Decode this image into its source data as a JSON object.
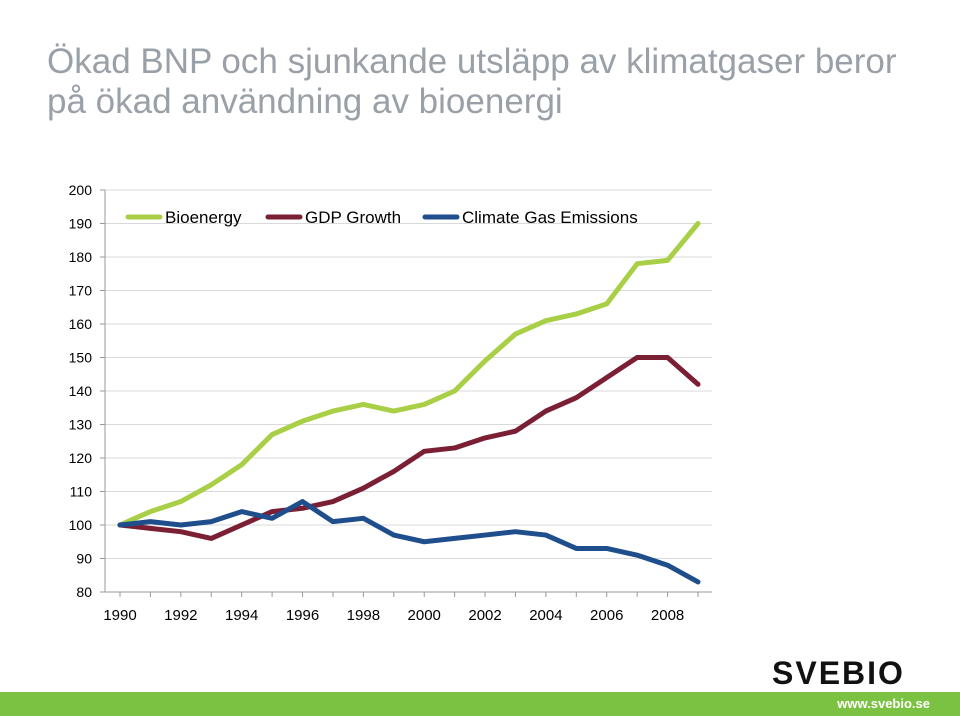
{
  "title_lines": [
    "Ökad BNP och sjunkande utsläpp av klimatgaser beror",
    "på ökad användning av bioenergi"
  ],
  "brand": {
    "logo_text": "SVEBIO",
    "url": "www.svebio.se",
    "accent_color": "#7cc242"
  },
  "chart_data": {
    "type": "line",
    "title": "",
    "xlabel": "",
    "ylabel": "",
    "x": [
      1990,
      1991,
      1992,
      1993,
      1994,
      1995,
      1996,
      1997,
      1998,
      1999,
      2000,
      2001,
      2002,
      2003,
      2004,
      2005,
      2006,
      2007,
      2008,
      2009
    ],
    "x_ticks": [
      "1990",
      "1992",
      "1994",
      "1996",
      "1998",
      "2000",
      "2002",
      "2004",
      "2006",
      "2008"
    ],
    "ylim": [
      80,
      200
    ],
    "y_ticks": [
      "80",
      "90",
      "100",
      "110",
      "120",
      "130",
      "140",
      "150",
      "160",
      "170",
      "180",
      "190",
      "200"
    ],
    "grid": true,
    "legend_position": "top",
    "series": [
      {
        "name": "Bioenergy",
        "color": "#a8cf45",
        "values": [
          100,
          104,
          107,
          112,
          118,
          127,
          131,
          134,
          136,
          134,
          136,
          140,
          149,
          157,
          161,
          163,
          166,
          178,
          179,
          190
        ]
      },
      {
        "name": "GDP Growth",
        "color": "#7b1f34",
        "values": [
          100,
          99,
          98,
          96,
          100,
          104,
          105,
          107,
          111,
          116,
          122,
          123,
          126,
          128,
          134,
          138,
          144,
          150,
          150,
          142
        ]
      },
      {
        "name": "Climate Gas Emissions",
        "color": "#1f4e8c",
        "values": [
          100,
          101,
          100,
          101,
          104,
          102,
          107,
          101,
          102,
          97,
          95,
          96,
          97,
          98,
          97,
          93,
          93,
          91,
          88,
          83
        ]
      }
    ]
  }
}
